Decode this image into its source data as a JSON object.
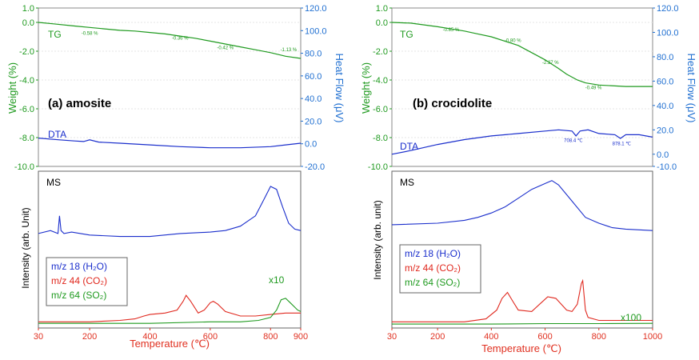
{
  "colors": {
    "green": "#1f9a1f",
    "blue": "#1a2ecc",
    "red": "#e0281e",
    "axis_blue": "#1f6fd1",
    "axis_red": "#e03020",
    "black": "#000000"
  },
  "chart_data": [
    {
      "id": "a",
      "type": "line",
      "panel_label": "(a) amosite",
      "top": {
        "tg_label": "TG",
        "dta_label": "DTA",
        "ylabel_left": "Weight (%)",
        "ylabel_right": "Heat Flow (μV)",
        "ylim_left": [
          -10,
          1
        ],
        "ylim_right": [
          -20,
          120
        ],
        "yticks_left": [
          "1.0",
          "0.0",
          "-2.0",
          "-4.0",
          "-6.0",
          "-8.0",
          "-10.0"
        ],
        "ytick_values_left": [
          1,
          0,
          -2,
          -4,
          -6,
          -8,
          -10
        ],
        "yticks_right": [
          "120.0",
          "100.0",
          "80.0",
          "60.0",
          "40.0",
          "20.0",
          "0.0",
          "-20.0"
        ],
        "ytick_values_right": [
          120,
          100,
          80,
          60,
          40,
          20,
          0,
          -20
        ],
        "tg_series": {
          "x": [
            30,
            80,
            150,
            200,
            250,
            300,
            350,
            400,
            450,
            500,
            550,
            600,
            650,
            700,
            750,
            800,
            850,
            900
          ],
          "y": [
            0.0,
            -0.1,
            -0.25,
            -0.35,
            -0.45,
            -0.55,
            -0.6,
            -0.7,
            -0.8,
            -0.95,
            -1.1,
            -1.3,
            -1.5,
            -1.7,
            -1.9,
            -2.1,
            -2.35,
            -2.5
          ]
        },
        "dta_series": {
          "x": [
            30,
            100,
            150,
            180,
            200,
            230,
            300,
            400,
            500,
            600,
            700,
            800,
            850,
            900
          ],
          "y": [
            5.0,
            3.5,
            2.5,
            2.0,
            3.5,
            1.5,
            0.5,
            -1.0,
            -2.5,
            -3.5,
            -3.5,
            -2.5,
            -1.0,
            0.5
          ]
        },
        "step_labels": [
          {
            "text": "-0.58 %",
            "x": 200,
            "y": -0.85
          },
          {
            "text": "-0.36 %",
            "x": 500,
            "y": -1.2
          },
          {
            "text": "-0.42 %",
            "x": 650,
            "y": -1.85
          },
          {
            "text": "-1.13 %",
            "x": 860,
            "y": -2.0
          }
        ]
      },
      "bottom": {
        "ms_label": "MS",
        "ylabel": "Intensity (arb. Unit)",
        "xlabel": "Temperature (℃)",
        "xlim": [
          30,
          900
        ],
        "xtick_values": [
          30,
          200,
          400,
          600,
          800,
          900
        ],
        "xticks": [
          "30",
          "200",
          "400",
          "600",
          "800",
          "900"
        ],
        "ylim": [
          0,
          100
        ],
        "multiplier_label": "x10",
        "legend": [
          "m/z 18 (H₂O)",
          "m/z 44 (CO₂)",
          "m/z 64 (SO₂)"
        ],
        "series": [
          {
            "name": "m/z 18 (H2O)",
            "color": "blue",
            "x": [
              30,
              70,
              95,
              100,
              105,
              115,
              140,
              200,
              300,
              400,
              500,
              600,
              650,
              700,
              750,
              780,
              800,
              820,
              840,
              860,
              880,
              900
            ],
            "y": [
              62,
              64,
              62,
              74,
              64,
              62,
              63,
              61,
              60,
              60,
              62,
              63,
              64,
              67,
              74,
              86,
              94,
              92,
              80,
              69,
              65,
              64
            ]
          },
          {
            "name": "m/z 44 (CO2)",
            "color": "red",
            "x": [
              30,
              200,
              300,
              350,
              380,
              400,
              450,
              490,
              510,
              520,
              535,
              560,
              580,
              600,
              610,
              625,
              650,
              700,
              750,
              800,
              850,
              900
            ],
            "y": [
              2,
              2,
              3,
              4,
              6,
              7,
              8,
              10,
              16,
              20,
              16,
              8,
              10,
              15,
              16,
              14,
              9,
              6,
              6,
              7,
              8,
              8
            ]
          },
          {
            "name": "m/z 64 (SO2)",
            "color": "green",
            "x": [
              30,
              200,
              400,
              600,
              700,
              760,
              800,
              820,
              835,
              850,
              870,
              890,
              900
            ],
            "y": [
              1,
              1,
              1,
              2,
              2,
              3,
              5,
              10,
              17,
              18,
              14,
              10,
              9
            ]
          }
        ]
      }
    },
    {
      "id": "b",
      "type": "line",
      "panel_label": "(b) crocidolite",
      "top": {
        "tg_label": "TG",
        "dta_label": "DTA",
        "ylabel_left": "Weight (%)",
        "ylabel_right": "Heat Flow (μV)",
        "ylim_left": [
          -10,
          1
        ],
        "ylim_right": [
          -10,
          120
        ],
        "yticks_left": [
          "1.0",
          "0.0",
          "-2.0",
          "-4.0",
          "-6.0",
          "-8.0",
          "-10.0"
        ],
        "ytick_values_left": [
          1,
          0,
          -2,
          -4,
          -6,
          -8,
          -10
        ],
        "yticks_right": [
          "120.0",
          "100.0",
          "80.0",
          "60.0",
          "40.0",
          "20.0",
          "0.0",
          "-10.0"
        ],
        "ytick_values_right": [
          120,
          100,
          80,
          60,
          40,
          20,
          0,
          -10
        ],
        "tg_series": {
          "x": [
            30,
            100,
            200,
            300,
            350,
            400,
            450,
            500,
            550,
            600,
            650,
            680,
            700,
            720,
            750,
            800,
            900,
            1000
          ],
          "y": [
            0.0,
            -0.05,
            -0.3,
            -0.6,
            -0.8,
            -1.0,
            -1.3,
            -1.6,
            -2.1,
            -2.6,
            -3.2,
            -3.6,
            -3.8,
            -4.0,
            -4.2,
            -4.35,
            -4.45,
            -4.45
          ]
        },
        "dta_series": {
          "x": [
            30,
            100,
            200,
            300,
            400,
            500,
            600,
            650,
            700,
            715,
            730,
            760,
            800,
            860,
            880,
            900,
            950,
            1000
          ],
          "y": [
            0,
            3,
            8,
            12,
            15,
            17,
            19,
            20,
            19,
            15,
            19,
            20,
            17,
            16,
            13,
            16,
            16,
            14
          ]
        },
        "step_labels": [
          {
            "text": "-0.85 %",
            "x": 250,
            "y": -0.6
          },
          {
            "text": "-0.80 %",
            "x": 480,
            "y": -1.35
          },
          {
            "text": "-2.27 %",
            "x": 620,
            "y": -2.9
          },
          {
            "text": "-0.49 %",
            "x": 780,
            "y": -4.65
          }
        ],
        "peak_labels": [
          {
            "text": "708.4 ℃",
            "x": 705,
            "y": 10
          },
          {
            "text": "878.1 ℃",
            "x": 885,
            "y": 7.5
          }
        ]
      },
      "bottom": {
        "ms_label": "MS",
        "ylabel": "Intensity (arb. unit)",
        "xlabel": "Temperature (℃)",
        "xlim": [
          30,
          1000
        ],
        "xtick_values": [
          30,
          200,
          400,
          600,
          800,
          1000
        ],
        "xticks": [
          "30",
          "200",
          "400",
          "600",
          "800",
          "1000"
        ],
        "ylim": [
          0,
          100
        ],
        "multiplier_label": "x100",
        "legend": [
          "m/z 18 (H₂O)",
          "m/z 44 (CO₂)",
          "m/z 64 (SO₂)"
        ],
        "series": [
          {
            "name": "m/z 18 (H2O)",
            "color": "blue",
            "x": [
              30,
              200,
              300,
              350,
              400,
              450,
              500,
              550,
              600,
              625,
              650,
              700,
              750,
              800,
              850,
              900,
              1000
            ],
            "y": [
              68,
              69,
              71,
              73,
              76,
              80,
              86,
              92,
              96,
              98,
              95,
              84,
              73,
              69,
              66,
              65,
              64
            ]
          },
          {
            "name": "m/z 44 (CO2)",
            "color": "red",
            "x": [
              30,
              200,
              300,
              380,
              420,
              440,
              460,
              480,
              500,
              550,
              580,
              610,
              640,
              680,
              700,
              720,
              735,
              740,
              750,
              760,
              800,
              900,
              1000
            ],
            "y": [
              2,
              2,
              2,
              4,
              10,
              18,
              22,
              16,
              10,
              9,
              14,
              19,
              18,
              10,
              9,
              14,
              28,
              30,
              10,
              5,
              3,
              3,
              3
            ]
          },
          {
            "name": "m/z 64 (SO2)",
            "color": "green",
            "x": [
              30,
              400,
              600,
              800,
              1000
            ],
            "y": [
              0.5,
              0.5,
              0.8,
              0.8,
              1.0
            ]
          }
        ]
      }
    }
  ]
}
